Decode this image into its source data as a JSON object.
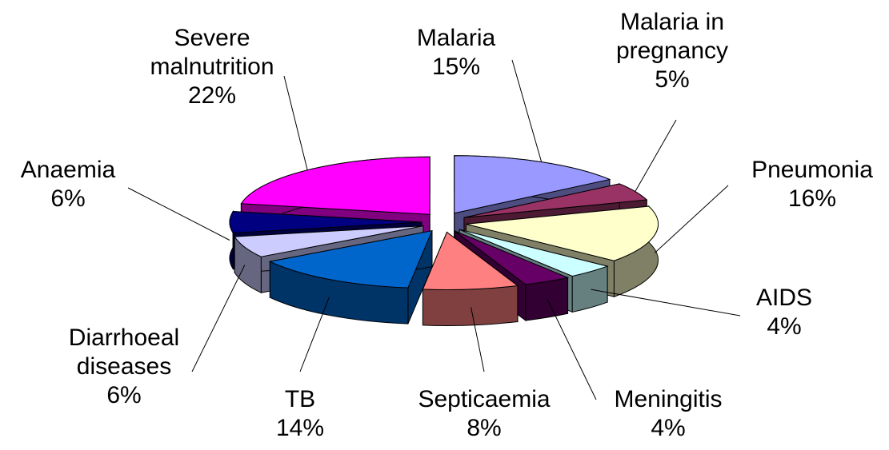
{
  "chart_data": {
    "type": "pie3d",
    "categories": [
      "Malaria",
      "Malaria in pregnancy",
      "Pneumonia",
      "AIDS",
      "Meningitis",
      "Septicaemia",
      "TB",
      "Diarrhoeal diseases",
      "Anaemia",
      "Severe malnutrition"
    ],
    "values": [
      15,
      5,
      16,
      4,
      4,
      8,
      14,
      6,
      6,
      22
    ],
    "value_labels": [
      "15%",
      "5%",
      "16%",
      "4%",
      "4%",
      "8%",
      "14%",
      "6%",
      "6%",
      "22%"
    ],
    "colors": [
      "#9999ff",
      "#993366",
      "#ffffcc",
      "#ccffff",
      "#660066",
      "#ff8080",
      "#0066cc",
      "#ccccff",
      "#000080",
      "#ff00ff"
    ]
  }
}
